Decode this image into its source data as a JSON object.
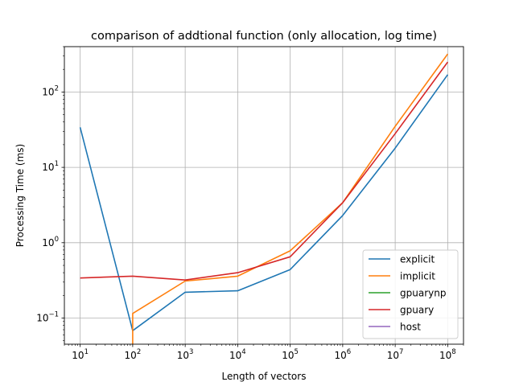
{
  "chart_data": {
    "type": "line",
    "title": "comparison of addtional function (only allocation, log time)",
    "xlabel": "Length of vectors",
    "ylabel": "Processing Time (ms)",
    "xscale": "log",
    "yscale": "log",
    "xlim": [
      5,
      200000000
    ],
    "ylim": [
      0.045,
      400
    ],
    "grid": true,
    "legend_position": "lower-right",
    "x_ticks": [
      {
        "base": "10",
        "exp": "1",
        "value": 10
      },
      {
        "base": "10",
        "exp": "2",
        "value": 100
      },
      {
        "base": "10",
        "exp": "3",
        "value": 1000
      },
      {
        "base": "10",
        "exp": "4",
        "value": 10000
      },
      {
        "base": "10",
        "exp": "5",
        "value": 100000
      },
      {
        "base": "10",
        "exp": "6",
        "value": 1000000
      },
      {
        "base": "10",
        "exp": "7",
        "value": 10000000
      },
      {
        "base": "10",
        "exp": "8",
        "value": 100000000
      }
    ],
    "y_ticks": [
      {
        "base": "10",
        "exp": "−1",
        "value": 0.1
      },
      {
        "base": "10",
        "exp": "0",
        "value": 1
      },
      {
        "base": "10",
        "exp": "1",
        "value": 10
      },
      {
        "base": "10",
        "exp": "2",
        "value": 100
      }
    ],
    "x": [
      10,
      100,
      1000,
      10000,
      100000,
      1000000,
      10000000,
      100000000
    ],
    "series": [
      {
        "name": "explicit",
        "color": "#1f77b4",
        "values": [
          34.0,
          0.068,
          0.22,
          0.23,
          0.44,
          2.3,
          18.0,
          170.0
        ]
      },
      {
        "name": "implicit",
        "color": "#ff7f0e",
        "values": [
          null,
          0.115,
          0.31,
          0.36,
          0.78,
          3.4,
          35.0,
          320.0
        ]
      },
      {
        "name": "gpuarynp",
        "color": "#2ca02c",
        "values": [
          null,
          null,
          null,
          null,
          null,
          null,
          null,
          null
        ]
      },
      {
        "name": "gpuary",
        "color": "#d62728",
        "values": [
          0.34,
          0.36,
          0.32,
          0.4,
          0.65,
          3.4,
          28.0,
          250.0
        ]
      },
      {
        "name": "host",
        "color": "#9467bd",
        "values": [
          null,
          null,
          null,
          null,
          null,
          null,
          null,
          null
        ]
      }
    ]
  }
}
